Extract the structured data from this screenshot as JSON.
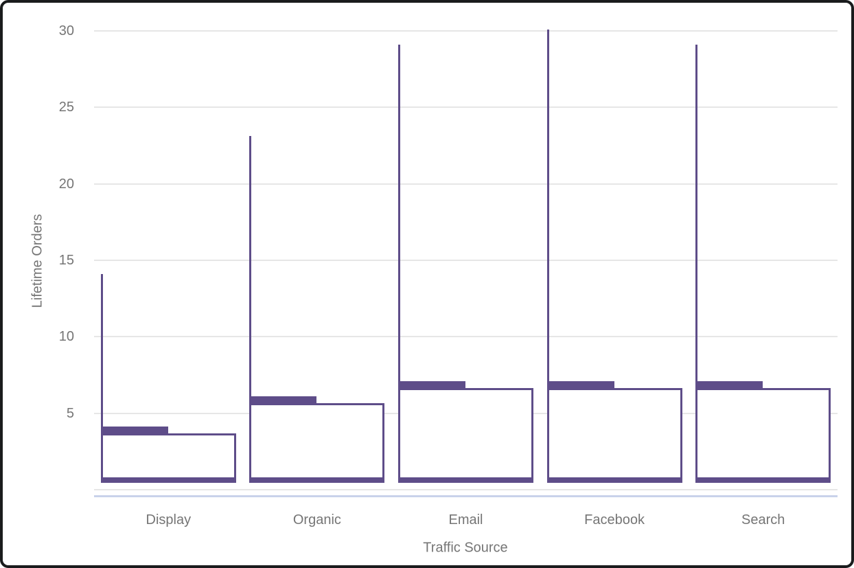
{
  "chart_data": {
    "type": "boxplot",
    "title": "",
    "xlabel": "Traffic Source",
    "ylabel": "Lifetime Orders",
    "categories": [
      "Display",
      "Organic",
      "Email",
      "Facebook",
      "Search"
    ],
    "series": [
      {
        "name": "Display",
        "min": 1,
        "q1": 2,
        "median": 3,
        "q3": 5,
        "max": 14
      },
      {
        "name": "Organic",
        "min": 1,
        "q1": 2,
        "median": 4,
        "q3": 7,
        "max": 23
      },
      {
        "name": "Email",
        "min": 1,
        "q1": 4,
        "median": 7,
        "q3": 10,
        "max": 29
      },
      {
        "name": "Facebook",
        "min": 1,
        "q1": 3,
        "median": 6,
        "q3": 9,
        "max": 30
      },
      {
        "name": "Search",
        "min": 1,
        "q1": 3,
        "median": 6,
        "q3": 9,
        "max": 29
      }
    ],
    "ylim": [
      0,
      30
    ],
    "yticks": [
      5,
      10,
      15,
      20,
      25,
      30
    ],
    "baseline_value": 0,
    "grid": "horizontal",
    "legend": "none",
    "colors": {
      "box_stroke": "#5e4d89",
      "box_fill": "#ffffff",
      "grid": "#e6e6e6",
      "axis_underline": "#c9d2ea",
      "label_text": "#757575",
      "frame_border": "#1a1c1d",
      "background": "#ffffff"
    }
  }
}
